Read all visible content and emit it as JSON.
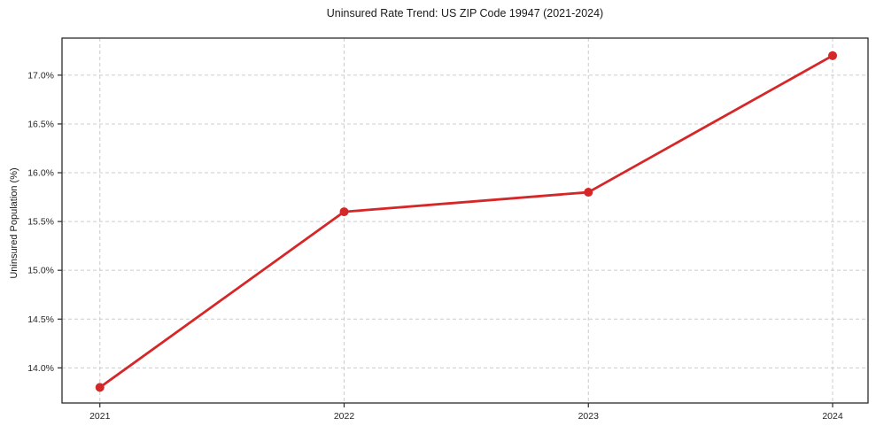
{
  "chart_data": {
    "type": "line",
    "title": "Uninsured Rate Trend: US ZIP Code 19947 (2021-2024)",
    "ylabel": "Uninsured Population (%)",
    "xlabel": "",
    "x": [
      2021,
      2022,
      2023,
      2024
    ],
    "values": [
      13.8,
      15.6,
      15.8,
      17.2
    ],
    "xtick_labels": [
      "2021",
      "2022",
      "2023",
      "2024"
    ],
    "ytick_values": [
      14.0,
      14.5,
      15.0,
      15.5,
      16.0,
      16.5,
      17.0
    ],
    "ytick_labels": [
      "14.0%",
      "14.5%",
      "15.0%",
      "15.5%",
      "16.0%",
      "16.5%",
      "17.0%"
    ],
    "xlim": [
      2020.845,
      2024.145
    ],
    "ylim": [
      13.64,
      17.38
    ],
    "grid": true,
    "legend_position": "none",
    "line_color": "#d62728",
    "marker": "circle",
    "marker_size": 5,
    "grid_color": "#cccccc",
    "spine_color": "#2b2b2b",
    "text_color": "#262626",
    "background_color": "#ffffff"
  }
}
